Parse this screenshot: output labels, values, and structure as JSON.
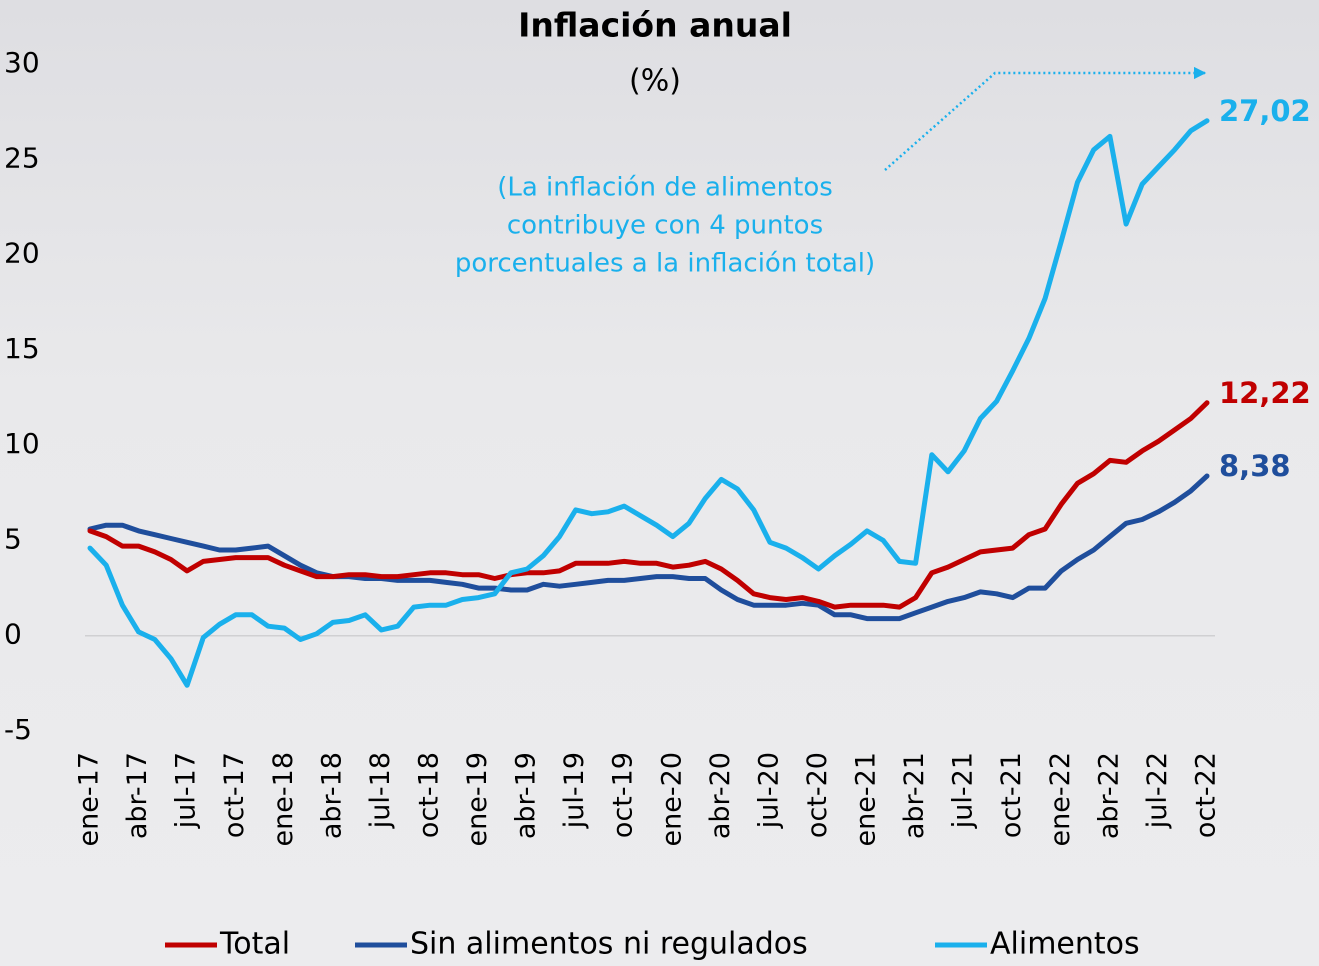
{
  "chart_data": {
    "type": "line",
    "title": "Inflación anual",
    "subtitle": "(%)",
    "annotation": [
      "(La inflación de alimentos",
      "contribuye con 4 puntos",
      "porcentuales a la inflación total)"
    ],
    "annotation_color": "#1ab0ec",
    "categories": [
      "ene-17",
      null,
      null,
      "abr-17",
      null,
      null,
      "jul-17",
      null,
      null,
      "oct-17",
      null,
      null,
      "ene-18",
      null,
      null,
      "abr-18",
      null,
      null,
      "jul-18",
      null,
      null,
      "oct-18",
      null,
      null,
      "ene-19",
      null,
      null,
      "abr-19",
      null,
      null,
      "jul-19",
      null,
      null,
      "oct-19",
      null,
      null,
      "ene-20",
      null,
      null,
      "abr-20",
      null,
      null,
      "jul-20",
      null,
      null,
      "oct-20",
      null,
      null,
      "ene-21",
      null,
      null,
      "abr-21",
      null,
      null,
      "jul-21",
      null,
      null,
      "oct-21",
      null,
      null,
      "ene-22",
      null,
      null,
      "abr-22",
      null,
      null,
      "jul-22",
      null,
      null,
      "oct-22"
    ],
    "series": [
      {
        "name": "Total",
        "color": "#c00000",
        "values": [
          5.5,
          5.2,
          4.7,
          4.7,
          4.4,
          4.0,
          3.4,
          3.9,
          4.0,
          4.1,
          4.1,
          4.1,
          3.7,
          3.4,
          3.1,
          3.1,
          3.2,
          3.2,
          3.1,
          3.1,
          3.2,
          3.3,
          3.3,
          3.2,
          3.2,
          3.0,
          3.2,
          3.3,
          3.3,
          3.4,
          3.8,
          3.8,
          3.8,
          3.9,
          3.8,
          3.8,
          3.6,
          3.7,
          3.9,
          3.5,
          2.9,
          2.2,
          2.0,
          1.9,
          2.0,
          1.8,
          1.5,
          1.6,
          1.6,
          1.6,
          1.5,
          2.0,
          3.3,
          3.6,
          4.0,
          4.4,
          4.5,
          4.6,
          5.3,
          5.6,
          6.9,
          8.0,
          8.5,
          9.2,
          9.1,
          9.7,
          10.2,
          10.8,
          11.4,
          12.22
        ],
        "value_labels": [
          null,
          null,
          null,
          null,
          null,
          null,
          null,
          null,
          null,
          null,
          null,
          null,
          null,
          null,
          null,
          null,
          null,
          null,
          null,
          null,
          null,
          null,
          null,
          null,
          null,
          null,
          null,
          null,
          null,
          null,
          null,
          null,
          null,
          null,
          null,
          null,
          null,
          null,
          null,
          null,
          null,
          null,
          null,
          null,
          null,
          null,
          null,
          null,
          null,
          null,
          null,
          null,
          null,
          null,
          null,
          null,
          null,
          null,
          null,
          null,
          null,
          null,
          null,
          null,
          null,
          null,
          null,
          null,
          null,
          "12,22"
        ]
      },
      {
        "name": "Sin alimentos ni regulados",
        "color": "#1f4e9c",
        "values": [
          5.6,
          5.8,
          5.8,
          5.5,
          5.3,
          5.1,
          4.9,
          4.7,
          4.5,
          4.5,
          4.6,
          4.7,
          4.2,
          3.7,
          3.3,
          3.1,
          3.1,
          3.0,
          3.0,
          2.9,
          2.9,
          2.9,
          2.8,
          2.7,
          2.5,
          2.5,
          2.4,
          2.4,
          2.7,
          2.6,
          2.7,
          2.8,
          2.9,
          2.9,
          3.0,
          3.1,
          3.1,
          3.0,
          3.0,
          2.4,
          1.9,
          1.6,
          1.6,
          1.6,
          1.7,
          1.6,
          1.1,
          1.1,
          0.9,
          0.9,
          0.9,
          1.2,
          1.5,
          1.8,
          2.0,
          2.3,
          2.2,
          2.0,
          2.5,
          2.5,
          3.4,
          4.0,
          4.5,
          5.2,
          5.9,
          6.1,
          6.5,
          7.0,
          7.6,
          8.38
        ],
        "value_labels": [
          null,
          null,
          null,
          null,
          null,
          null,
          null,
          null,
          null,
          null,
          null,
          null,
          null,
          null,
          null,
          null,
          null,
          null,
          null,
          null,
          null,
          null,
          null,
          null,
          null,
          null,
          null,
          null,
          null,
          null,
          null,
          null,
          null,
          null,
          null,
          null,
          null,
          null,
          null,
          null,
          null,
          null,
          null,
          null,
          null,
          null,
          null,
          null,
          null,
          null,
          null,
          null,
          null,
          null,
          null,
          null,
          null,
          null,
          null,
          null,
          null,
          null,
          null,
          null,
          null,
          null,
          null,
          null,
          null,
          "8,38"
        ]
      },
      {
        "name": "Alimentos",
        "color": "#1ab0ec",
        "values": [
          4.6,
          3.7,
          1.6,
          0.2,
          -0.2,
          -1.2,
          -2.6,
          -0.1,
          0.6,
          1.1,
          1.1,
          0.5,
          0.4,
          -0.2,
          0.1,
          0.7,
          0.8,
          1.1,
          0.3,
          0.5,
          1.5,
          1.6,
          1.6,
          1.9,
          2.0,
          2.2,
          3.3,
          3.5,
          4.2,
          5.2,
          6.6,
          6.4,
          6.5,
          6.8,
          6.3,
          5.8,
          5.2,
          5.9,
          7.2,
          8.2,
          7.7,
          6.6,
          4.9,
          4.6,
          4.1,
          3.5,
          4.2,
          4.8,
          5.5,
          5.0,
          3.9,
          3.8,
          9.5,
          8.6,
          9.7,
          11.4,
          12.3,
          13.9,
          15.6,
          17.7,
          20.7,
          23.8,
          25.5,
          26.2,
          21.6,
          23.7,
          24.6,
          25.5,
          26.5,
          27.02
        ],
        "value_labels": [
          null,
          null,
          null,
          null,
          null,
          null,
          null,
          null,
          null,
          null,
          null,
          null,
          null,
          null,
          null,
          null,
          null,
          null,
          null,
          null,
          null,
          null,
          null,
          null,
          null,
          null,
          null,
          null,
          null,
          null,
          null,
          null,
          null,
          null,
          null,
          null,
          null,
          null,
          null,
          null,
          null,
          null,
          null,
          null,
          null,
          null,
          null,
          null,
          null,
          null,
          null,
          null,
          null,
          null,
          null,
          null,
          null,
          null,
          null,
          null,
          null,
          null,
          null,
          null,
          null,
          null,
          null,
          null,
          null,
          "27,02"
        ]
      }
    ],
    "ylim": [
      -5,
      30
    ],
    "yticks": [
      -5,
      0,
      5,
      10,
      15,
      20,
      25,
      30
    ],
    "grid": false,
    "legend": "bottom"
  }
}
